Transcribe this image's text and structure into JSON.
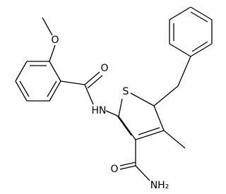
{
  "nodes": [
    {
      "label": "O"
    },
    {
      "label": "O"
    },
    {
      "label": "S"
    },
    {
      "label": "HN"
    },
    {
      "label": "O"
    },
    {
      "label": "NH₂"
    }
  ]
}
